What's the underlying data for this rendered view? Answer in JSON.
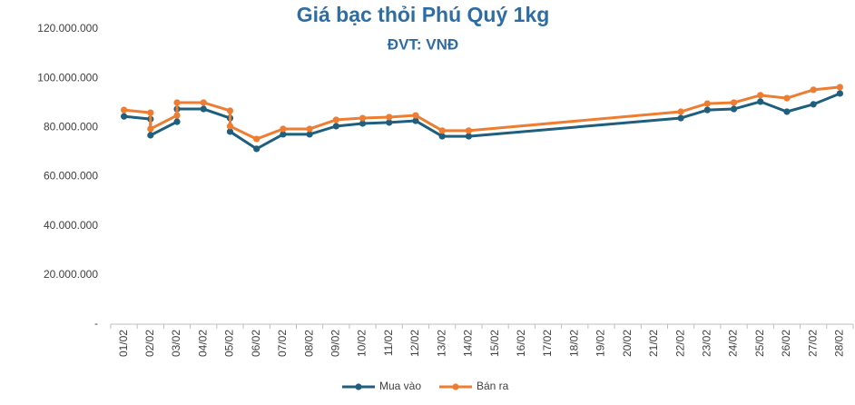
{
  "chart_data": {
    "type": "line",
    "title": "Giá bạc thỏi Phú Quý 1kg",
    "subtitle": "ĐVT: VNĐ",
    "categories": [
      "01/02",
      "02/02",
      "03/02",
      "04/02",
      "05/02",
      "06/02",
      "07/02",
      "08/02",
      "09/02",
      "10/02",
      "11/02",
      "12/02",
      "13/02",
      "14/02",
      "15/02",
      "16/02",
      "17/02",
      "18/02",
      "19/02",
      "20/02",
      "21/02",
      "22/02",
      "23/02",
      "24/02",
      "25/02",
      "26/02",
      "27/02",
      "28/02"
    ],
    "x": [
      "01/02",
      "02/02",
      "02/02",
      "03/02",
      "03/02",
      "04/02",
      "05/02",
      "05/02",
      "06/02",
      "07/02",
      "08/02",
      "09/02",
      "10/02",
      "11/02",
      "12/02",
      "13/02",
      "14/02",
      "22/02",
      "23/02",
      "24/02",
      "25/02",
      "26/02",
      "27/02",
      "28/02"
    ],
    "series": [
      {
        "name": "Mua vào",
        "color": "#1f5f7d",
        "values": [
          84500000,
          83400000,
          76800000,
          82300000,
          87500000,
          87500000,
          83800000,
          78300000,
          71300000,
          77200000,
          77200000,
          80500000,
          81600000,
          82000000,
          82700000,
          76400000,
          76400000,
          83800000,
          87100000,
          87500000,
          90500000,
          86400000,
          89400000,
          93800000
        ]
      },
      {
        "name": "Bán ra",
        "color": "#ee7d31",
        "values": [
          87100000,
          86000000,
          79400000,
          84900000,
          90100000,
          90100000,
          86800000,
          80500000,
          75300000,
          79400000,
          79400000,
          83100000,
          83800000,
          84200000,
          84900000,
          78700000,
          78700000,
          86400000,
          89700000,
          90100000,
          93100000,
          91900000,
          95300000,
          96400000
        ]
      }
    ],
    "ylim": [
      0,
      120000000
    ],
    "yticks": [
      {
        "value": 0,
        "label": "-"
      },
      {
        "value": 20000000,
        "label": "20.000.000"
      },
      {
        "value": 40000000,
        "label": "40.000.000"
      },
      {
        "value": 60000000,
        "label": "60.000.000"
      },
      {
        "value": 80000000,
        "label": "80.000.000"
      },
      {
        "value": 100000000,
        "label": "100.000.000"
      },
      {
        "value": 120000000,
        "label": "120.000.000"
      }
    ],
    "grid": false,
    "legend": "bottom"
  }
}
